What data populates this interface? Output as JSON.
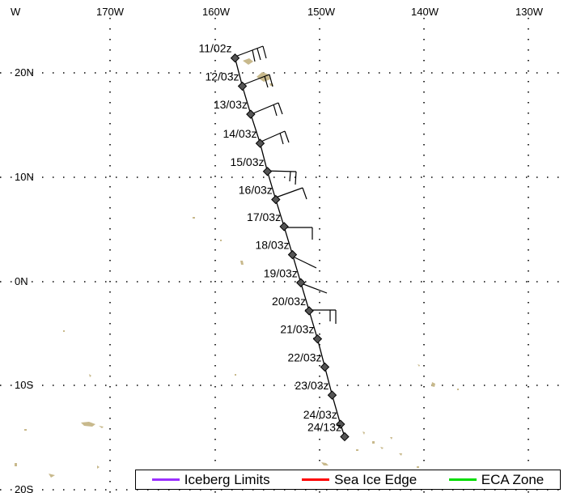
{
  "map": {
    "lon_labels": [
      "W",
      "170W",
      "160W",
      "150W",
      "140W",
      "130W"
    ],
    "lat_labels": [
      "20N",
      "10N",
      "0N",
      "10S",
      "20S"
    ],
    "track": [
      {
        "label": "11/02z",
        "lat": 21.5,
        "lon": -158.1
      },
      {
        "label": "12/03z",
        "lat": 18.8,
        "lon": -157.4
      },
      {
        "label": "13/03z",
        "lat": 16.1,
        "lon": -156.6
      },
      {
        "label": "14/03z",
        "lat": 13.3,
        "lon": -155.7
      },
      {
        "label": "15/03z",
        "lat": 10.6,
        "lon": -155.0
      },
      {
        "label": "16/03z",
        "lat": 7.9,
        "lon": -154.2
      },
      {
        "label": "17/03z",
        "lat": 5.3,
        "lon": -153.4
      },
      {
        "label": "18/03z",
        "lat": 2.6,
        "lon": -152.6
      },
      {
        "label": "19/03z",
        "lat": -0.1,
        "lon": -151.8
      },
      {
        "label": "20/03z",
        "lat": -2.8,
        "lon": -151.0
      },
      {
        "label": "21/03z",
        "lat": -5.5,
        "lon": -150.2
      },
      {
        "label": "22/03z",
        "lat": -8.2,
        "lon": -149.5
      },
      {
        "label": "23/03z",
        "lat": -10.9,
        "lon": -148.8
      },
      {
        "label": "24/03z",
        "lat": -13.7,
        "lon": -148.0
      },
      {
        "label": "24/13z",
        "lat": -14.9,
        "lon": -147.6
      }
    ]
  },
  "legend": {
    "items": [
      {
        "label": "Iceberg Limits",
        "color": "#9b30ff"
      },
      {
        "label": "Sea Ice Edge",
        "color": "#ff0000"
      },
      {
        "label": "ECA Zone",
        "color": "#00dd00"
      }
    ]
  },
  "colors": {
    "land": "#c8b98c",
    "marker": "#555555"
  }
}
